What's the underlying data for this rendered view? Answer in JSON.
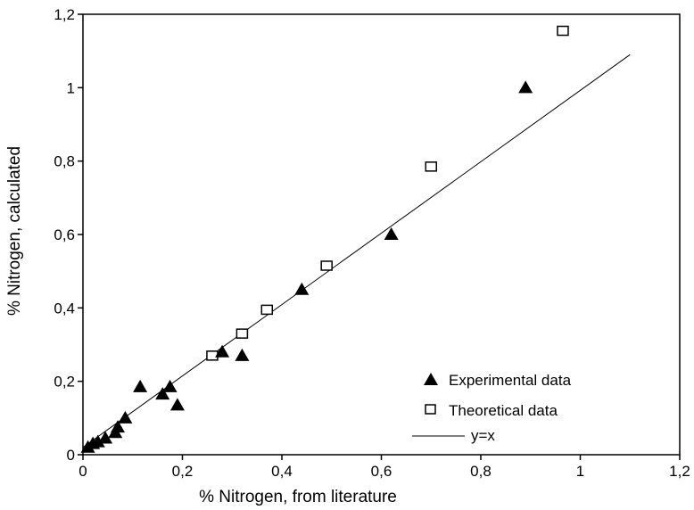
{
  "chart_data": {
    "type": "scatter",
    "title": "",
    "xlabel": "% Nitrogen, from literature",
    "ylabel": "% Nitrogen, calculated",
    "xlim": [
      0,
      1.2
    ],
    "ylim": [
      0,
      1.2
    ],
    "x_ticks": [
      "0",
      "0,2",
      "0,4",
      "0,6",
      "0,8",
      "1",
      "1,2"
    ],
    "y_ticks": [
      "0",
      "0,2",
      "0,4",
      "0,6",
      "0,8",
      "1",
      "1,2"
    ],
    "grid": false,
    "legend_position": "bottom-right",
    "series": [
      {
        "name": "Experimental data",
        "marker": "filled-triangle",
        "color": "#000000",
        "points": [
          [
            0.01,
            0.02
          ],
          [
            0.02,
            0.03
          ],
          [
            0.03,
            0.035
          ],
          [
            0.045,
            0.045
          ],
          [
            0.065,
            0.06
          ],
          [
            0.07,
            0.075
          ],
          [
            0.085,
            0.1
          ],
          [
            0.115,
            0.185
          ],
          [
            0.16,
            0.165
          ],
          [
            0.175,
            0.185
          ],
          [
            0.19,
            0.135
          ],
          [
            0.28,
            0.28
          ],
          [
            0.32,
            0.27
          ],
          [
            0.44,
            0.45
          ],
          [
            0.62,
            0.6
          ],
          [
            0.89,
            1.0
          ]
        ]
      },
      {
        "name": "Theoretical data",
        "marker": "open-square",
        "color": "#000000",
        "points": [
          [
            0.26,
            0.27
          ],
          [
            0.32,
            0.33
          ],
          [
            0.37,
            0.395
          ],
          [
            0.49,
            0.515
          ],
          [
            0.7,
            0.785
          ],
          [
            0.965,
            1.155
          ]
        ]
      },
      {
        "name": "y=x",
        "marker": "line",
        "color": "#000000",
        "points": [
          [
            0,
            0.02
          ],
          [
            1.1,
            1.09
          ]
        ]
      }
    ]
  }
}
